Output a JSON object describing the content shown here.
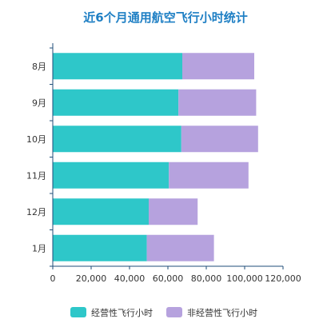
{
  "chart_data": {
    "type": "bar",
    "orientation": "horizontal",
    "stacked": true,
    "title": "近6个月通用航空飞行小时统计",
    "categories": [
      "8月",
      "9月",
      "10月",
      "11月",
      "12月",
      "1月"
    ],
    "series": [
      {
        "name": "经营性飞行小时",
        "color": "#2EC7C9",
        "values": [
          67500,
          65500,
          67000,
          60500,
          50000,
          49000
        ]
      },
      {
        "name": "非经营性飞行小时",
        "color": "#B6A2DE",
        "values": [
          37500,
          40500,
          40000,
          41500,
          25500,
          35000
        ]
      }
    ],
    "xlim": [
      0,
      120000
    ],
    "xticks": [
      "0",
      "20,000",
      "40,000",
      "60,000",
      "80,000",
      "100,000",
      "120,000"
    ],
    "xtick_values": [
      0,
      20000,
      40000,
      60000,
      80000,
      100000,
      120000
    ],
    "grid": false,
    "legend_position": "bottom",
    "axis_color": "#1F4E79"
  }
}
